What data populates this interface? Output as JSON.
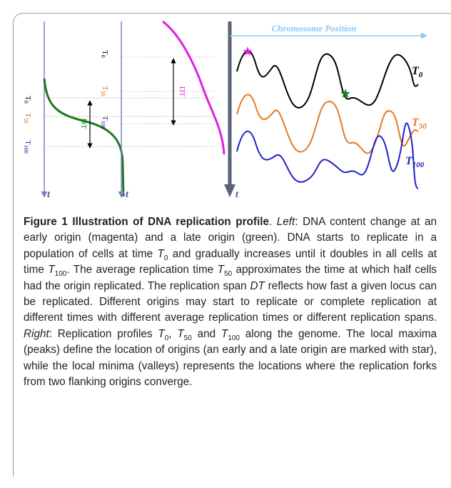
{
  "figure": {
    "axis_title": "Chromosome Position",
    "time_axis": [
      "t",
      "t",
      "t"
    ],
    "span": [
      "DT",
      "DT"
    ],
    "green_ticks": [
      {
        "base": "T",
        "sub": "0"
      },
      {
        "base": "T",
        "sub": "50"
      },
      {
        "base": "T",
        "sub": "100"
      }
    ],
    "magenta_ticks": [
      {
        "base": "T",
        "sub": "0"
      },
      {
        "base": "T",
        "sub": "50"
      },
      {
        "base": "T",
        "sub": "100"
      }
    ],
    "profiles": [
      {
        "base": "T",
        "sub": "0"
      },
      {
        "base": "T",
        "sub": "50"
      },
      {
        "base": "T",
        "sub": "100"
      }
    ]
  },
  "caption": {
    "runs": [
      "Figure 1 Illustration of DNA replication profile",
      ". ",
      "Left",
      ": DNA content change at an early origin (magenta) and a late origin (green). DNA starts to replicate in a population of cells at time ",
      "T",
      "0",
      " and gradually increases until it doubles in all cells at time ",
      "T",
      "100",
      ". The average replication time ",
      "T",
      "50",
      " approximates the time at which half cells had the origin replicated. The replication span ",
      "DT",
      " reflects how fast a given locus can be replicated. Different origins may start to replicate or complete replication at different times with different average replication times or different replication spans. ",
      "Right",
      ": Replication profiles ",
      "T",
      "0",
      ", ",
      "T",
      "50",
      " and ",
      "T",
      "100",
      " along the genome. The local maxima (peaks) define the location of origins (an early and a late origin are marked with star), while the local minima (valleys) represents the locations where the replication forks from two flanking origins converge."
    ]
  }
}
